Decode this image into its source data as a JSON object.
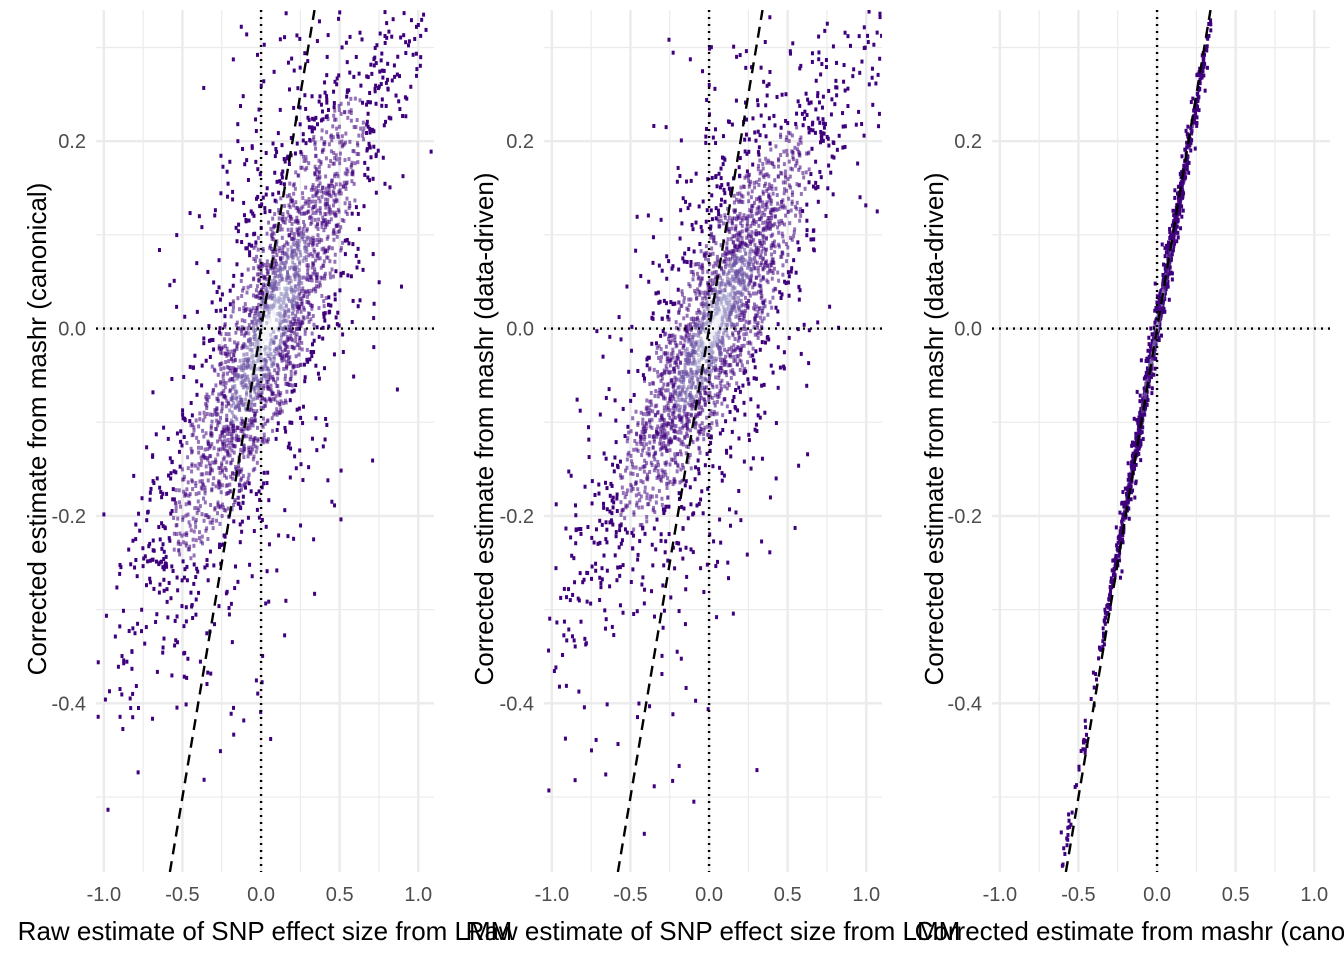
{
  "chart_data": [
    {
      "type": "scatter",
      "style": "hexbin-density",
      "xlabel": "Raw estimate of SNP effect size from LMM",
      "ylabel": "Corrected estimate from mashr (canonical)",
      "xlim": [
        -1.05,
        1.1
      ],
      "ylim": [
        -0.58,
        0.34
      ],
      "x_ticks": [
        -1.0,
        -0.5,
        0.0,
        0.5,
        1.0
      ],
      "x_tick_labels": [
        "-1.0",
        "-0.5",
        "0.0",
        "0.5",
        "1.0"
      ],
      "y_ticks": [
        -0.4,
        -0.2,
        0.0,
        0.2
      ],
      "y_tick_labels": [
        "-0.4",
        "-0.2",
        "0.0",
        "0.2"
      ],
      "reference_lines": {
        "dashed_identity_slope": 1.0,
        "dotted_x": 0.0,
        "dotted_y": 0.0
      },
      "density_cloud": {
        "center": [
          0.05,
          0.0
        ],
        "slope": 0.35,
        "spread_along": 0.28,
        "spread_across": 0.055
      },
      "colors": {
        "low": "#3f007d",
        "mid": "#6a51a3",
        "high": "#efedf5",
        "dashed": "#000000",
        "grid": "#ebebeb"
      }
    },
    {
      "type": "scatter",
      "style": "hexbin-density",
      "xlabel": "Raw estimate of SNP effect size from LMM",
      "ylabel": "Corrected estimate from mashr (data-driven)",
      "xlim": [
        -1.05,
        1.1
      ],
      "ylim": [
        -0.58,
        0.34
      ],
      "x_ticks": [
        -1.0,
        -0.5,
        0.0,
        0.5,
        1.0
      ],
      "x_tick_labels": [
        "-1.0",
        "-0.5",
        "0.0",
        "0.5",
        "1.0"
      ],
      "y_ticks": [
        -0.4,
        -0.2,
        0.0,
        0.2
      ],
      "y_tick_labels": [
        "-0.4",
        "-0.2",
        "0.0",
        "0.2"
      ],
      "reference_lines": {
        "dashed_identity_slope": 1.0,
        "dotted_x": 0.0,
        "dotted_y": 0.0
      },
      "density_cloud": {
        "center": [
          0.03,
          0.0
        ],
        "slope": 0.3,
        "spread_along": 0.28,
        "spread_across": 0.05
      },
      "colors": {
        "low": "#3f007d",
        "mid": "#6a51a3",
        "high": "#efedf5",
        "dashed": "#000000",
        "grid": "#ebebeb"
      }
    },
    {
      "type": "scatter",
      "style": "hexbin-density",
      "xlabel": "Corrected estimate from mashr (canonical)",
      "ylabel": "Corrected estimate from mashr (data-driven)",
      "xlim": [
        -1.05,
        1.1
      ],
      "ylim": [
        -0.58,
        0.34
      ],
      "x_ticks": [
        -1.0,
        -0.5,
        0.0,
        0.5,
        1.0
      ],
      "x_tick_labels": [
        "-1.0",
        "-0.5",
        "0.0",
        "0.5",
        "1.0"
      ],
      "y_ticks": [
        -0.4,
        -0.2,
        0.0,
        0.2
      ],
      "y_tick_labels": [
        "-0.4",
        "-0.2",
        "0.0",
        "0.2"
      ],
      "reference_lines": {
        "dashed_identity_slope": 1.0,
        "dotted_x": 0.0,
        "dotted_y": 0.0
      },
      "density_cloud": {
        "center": [
          0.0,
          0.0
        ],
        "slope": 0.95,
        "spread_along": 0.11,
        "spread_across": 0.008
      },
      "colors": {
        "low": "#3f007d",
        "mid": "#6a51a3",
        "high": "#efedf5",
        "dashed": "#000000",
        "grid": "#ebebeb"
      }
    }
  ]
}
